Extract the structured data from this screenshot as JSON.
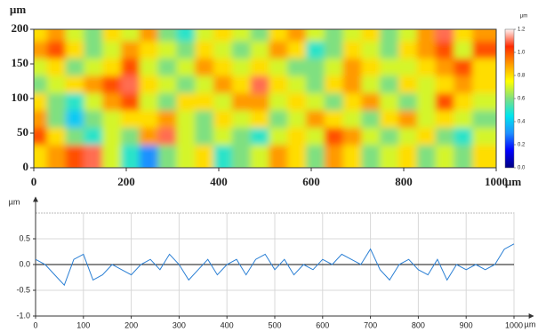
{
  "chart_data": [
    {
      "type": "heatmap",
      "ylabel": "µm",
      "xlabel": "µm",
      "xlim": [
        0,
        1000
      ],
      "ylim": [
        0,
        200
      ],
      "xticks": [
        0,
        200,
        400,
        600,
        800,
        1000
      ],
      "yticks": [
        0,
        50,
        100,
        150,
        200
      ],
      "colormap": [
        "#000080",
        "#0000ff",
        "#1e90ff",
        "#00e5ee",
        "#7fe080",
        "#ffff00",
        "#ff9a00",
        "#ff2a00",
        "#fff4f4"
      ],
      "colorbar": {
        "label": "µm",
        "lim": [
          0,
          1.2
        ],
        "ticks": [
          {
            "value": 0,
            "label": "0.0"
          },
          0.2,
          0.4,
          0.6,
          0.8,
          {
            "value": 1,
            "label": "1.0"
          },
          1.2
        ]
      },
      "z": [
        [
          0.8,
          0.9,
          0.7,
          0.6,
          0.8,
          0.7,
          0.9,
          0.6,
          0.5,
          0.7,
          0.8,
          0.7,
          0.6,
          0.8,
          0.9,
          0.7,
          0.6,
          0.7,
          0.8,
          0.6,
          0.7,
          0.9,
          1.1,
          0.8,
          0.9
        ],
        [
          0.9,
          1.0,
          0.8,
          0.6,
          0.7,
          0.9,
          0.8,
          0.7,
          0.6,
          0.8,
          0.7,
          0.6,
          0.7,
          0.9,
          0.8,
          0.5,
          0.6,
          0.8,
          0.7,
          0.6,
          0.8,
          0.9,
          1.0,
          0.7,
          1.0
        ],
        [
          0.7,
          0.8,
          0.6,
          0.7,
          0.8,
          1.0,
          0.7,
          0.6,
          0.7,
          0.9,
          0.8,
          0.7,
          0.8,
          0.7,
          0.6,
          0.6,
          0.7,
          0.9,
          0.8,
          0.7,
          0.7,
          0.8,
          0.9,
          1.0,
          0.8
        ],
        [
          0.6,
          0.7,
          0.8,
          0.9,
          1.0,
          1.1,
          0.8,
          0.7,
          0.6,
          0.7,
          0.9,
          0.8,
          1.1,
          0.8,
          0.7,
          0.6,
          0.8,
          0.9,
          0.7,
          0.6,
          0.8,
          0.7,
          0.8,
          0.9,
          0.8
        ],
        [
          0.8,
          0.6,
          0.5,
          0.7,
          0.9,
          1.0,
          0.7,
          0.6,
          0.8,
          0.8,
          0.7,
          0.9,
          0.9,
          0.7,
          0.8,
          0.7,
          0.6,
          0.8,
          0.9,
          0.7,
          0.6,
          0.7,
          1.0,
          0.8,
          0.7
        ],
        [
          0.9,
          0.6,
          0.4,
          0.6,
          0.7,
          0.8,
          0.8,
          0.9,
          0.7,
          0.6,
          0.8,
          0.7,
          0.8,
          0.6,
          0.7,
          0.9,
          0.8,
          0.7,
          0.6,
          0.8,
          0.9,
          0.7,
          0.8,
          0.7,
          0.6
        ],
        [
          1.0,
          0.8,
          0.6,
          0.5,
          0.7,
          0.6,
          0.9,
          1.1,
          0.7,
          0.6,
          0.7,
          0.6,
          0.5,
          0.7,
          0.8,
          0.7,
          1.0,
          0.9,
          0.7,
          0.6,
          0.7,
          0.8,
          0.6,
          0.5,
          0.7
        ],
        [
          0.8,
          0.9,
          1.0,
          1.1,
          0.7,
          0.5,
          0.3,
          0.6,
          0.7,
          0.8,
          0.5,
          0.6,
          0.7,
          0.9,
          0.8,
          0.6,
          0.9,
          0.8,
          0.6,
          0.7,
          0.8,
          0.6,
          0.7,
          0.6,
          0.8
        ]
      ]
    },
    {
      "type": "line",
      "ylabel": "µm",
      "xlabel": "µm",
      "color": "#2a7fd4",
      "grid": true,
      "zero_line": true,
      "xlim": [
        0,
        1000
      ],
      "ylim": [
        -1,
        1
      ],
      "xticks": [
        0,
        100,
        200,
        300,
        400,
        500,
        600,
        700,
        800,
        900,
        1000
      ],
      "yticks": [
        0.5,
        {
          "value": 0,
          "label": "0.0"
        },
        -0.5,
        {
          "value": -1,
          "label": "-1.0"
        }
      ],
      "x": [
        0,
        20,
        40,
        60,
        80,
        100,
        120,
        140,
        160,
        180,
        200,
        220,
        240,
        260,
        280,
        300,
        320,
        340,
        360,
        380,
        400,
        420,
        440,
        460,
        480,
        500,
        520,
        540,
        560,
        580,
        600,
        620,
        640,
        660,
        680,
        700,
        720,
        740,
        760,
        780,
        800,
        820,
        840,
        860,
        880,
        900,
        920,
        940,
        960,
        980,
        1000
      ],
      "values": [
        0.1,
        0.0,
        -0.2,
        -0.4,
        0.1,
        0.2,
        -0.3,
        -0.2,
        0.0,
        -0.1,
        -0.2,
        0.0,
        0.1,
        -0.1,
        0.2,
        0.0,
        -0.3,
        -0.1,
        0.1,
        -0.2,
        0.0,
        0.1,
        -0.2,
        0.1,
        0.2,
        -0.1,
        0.1,
        -0.2,
        0.0,
        -0.1,
        0.1,
        0.0,
        0.2,
        0.1,
        0.0,
        0.3,
        -0.1,
        -0.3,
        0.0,
        0.1,
        -0.1,
        -0.2,
        0.1,
        -0.3,
        0.0,
        -0.1,
        0.0,
        -0.1,
        0.0,
        0.3,
        0.4
      ]
    }
  ]
}
